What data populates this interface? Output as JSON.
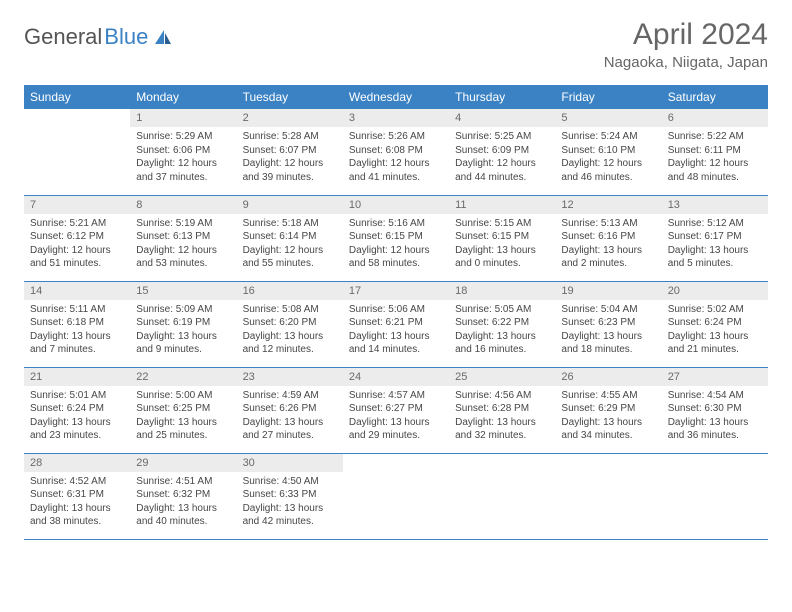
{
  "logo": {
    "text_gray": "General",
    "text_blue": "Blue"
  },
  "header": {
    "month_title": "April 2024",
    "location": "Nagaoka, Niigata, Japan"
  },
  "colors": {
    "header_bg": "#3b82c4",
    "header_text": "#ffffff",
    "daynum_bg": "#ececec",
    "daynum_text": "#6a6a6a",
    "body_text": "#474747",
    "divider": "#3b82c4",
    "title_text": "#666666"
  },
  "weekdays": [
    "Sunday",
    "Monday",
    "Tuesday",
    "Wednesday",
    "Thursday",
    "Friday",
    "Saturday"
  ],
  "weeks": [
    [
      {
        "n": "",
        "sr": "",
        "ss": "",
        "dl": ""
      },
      {
        "n": "1",
        "sr": "Sunrise: 5:29 AM",
        "ss": "Sunset: 6:06 PM",
        "dl": "Daylight: 12 hours and 37 minutes."
      },
      {
        "n": "2",
        "sr": "Sunrise: 5:28 AM",
        "ss": "Sunset: 6:07 PM",
        "dl": "Daylight: 12 hours and 39 minutes."
      },
      {
        "n": "3",
        "sr": "Sunrise: 5:26 AM",
        "ss": "Sunset: 6:08 PM",
        "dl": "Daylight: 12 hours and 41 minutes."
      },
      {
        "n": "4",
        "sr": "Sunrise: 5:25 AM",
        "ss": "Sunset: 6:09 PM",
        "dl": "Daylight: 12 hours and 44 minutes."
      },
      {
        "n": "5",
        "sr": "Sunrise: 5:24 AM",
        "ss": "Sunset: 6:10 PM",
        "dl": "Daylight: 12 hours and 46 minutes."
      },
      {
        "n": "6",
        "sr": "Sunrise: 5:22 AM",
        "ss": "Sunset: 6:11 PM",
        "dl": "Daylight: 12 hours and 48 minutes."
      }
    ],
    [
      {
        "n": "7",
        "sr": "Sunrise: 5:21 AM",
        "ss": "Sunset: 6:12 PM",
        "dl": "Daylight: 12 hours and 51 minutes."
      },
      {
        "n": "8",
        "sr": "Sunrise: 5:19 AM",
        "ss": "Sunset: 6:13 PM",
        "dl": "Daylight: 12 hours and 53 minutes."
      },
      {
        "n": "9",
        "sr": "Sunrise: 5:18 AM",
        "ss": "Sunset: 6:14 PM",
        "dl": "Daylight: 12 hours and 55 minutes."
      },
      {
        "n": "10",
        "sr": "Sunrise: 5:16 AM",
        "ss": "Sunset: 6:15 PM",
        "dl": "Daylight: 12 hours and 58 minutes."
      },
      {
        "n": "11",
        "sr": "Sunrise: 5:15 AM",
        "ss": "Sunset: 6:15 PM",
        "dl": "Daylight: 13 hours and 0 minutes."
      },
      {
        "n": "12",
        "sr": "Sunrise: 5:13 AM",
        "ss": "Sunset: 6:16 PM",
        "dl": "Daylight: 13 hours and 2 minutes."
      },
      {
        "n": "13",
        "sr": "Sunrise: 5:12 AM",
        "ss": "Sunset: 6:17 PM",
        "dl": "Daylight: 13 hours and 5 minutes."
      }
    ],
    [
      {
        "n": "14",
        "sr": "Sunrise: 5:11 AM",
        "ss": "Sunset: 6:18 PM",
        "dl": "Daylight: 13 hours and 7 minutes."
      },
      {
        "n": "15",
        "sr": "Sunrise: 5:09 AM",
        "ss": "Sunset: 6:19 PM",
        "dl": "Daylight: 13 hours and 9 minutes."
      },
      {
        "n": "16",
        "sr": "Sunrise: 5:08 AM",
        "ss": "Sunset: 6:20 PM",
        "dl": "Daylight: 13 hours and 12 minutes."
      },
      {
        "n": "17",
        "sr": "Sunrise: 5:06 AM",
        "ss": "Sunset: 6:21 PM",
        "dl": "Daylight: 13 hours and 14 minutes."
      },
      {
        "n": "18",
        "sr": "Sunrise: 5:05 AM",
        "ss": "Sunset: 6:22 PM",
        "dl": "Daylight: 13 hours and 16 minutes."
      },
      {
        "n": "19",
        "sr": "Sunrise: 5:04 AM",
        "ss": "Sunset: 6:23 PM",
        "dl": "Daylight: 13 hours and 18 minutes."
      },
      {
        "n": "20",
        "sr": "Sunrise: 5:02 AM",
        "ss": "Sunset: 6:24 PM",
        "dl": "Daylight: 13 hours and 21 minutes."
      }
    ],
    [
      {
        "n": "21",
        "sr": "Sunrise: 5:01 AM",
        "ss": "Sunset: 6:24 PM",
        "dl": "Daylight: 13 hours and 23 minutes."
      },
      {
        "n": "22",
        "sr": "Sunrise: 5:00 AM",
        "ss": "Sunset: 6:25 PM",
        "dl": "Daylight: 13 hours and 25 minutes."
      },
      {
        "n": "23",
        "sr": "Sunrise: 4:59 AM",
        "ss": "Sunset: 6:26 PM",
        "dl": "Daylight: 13 hours and 27 minutes."
      },
      {
        "n": "24",
        "sr": "Sunrise: 4:57 AM",
        "ss": "Sunset: 6:27 PM",
        "dl": "Daylight: 13 hours and 29 minutes."
      },
      {
        "n": "25",
        "sr": "Sunrise: 4:56 AM",
        "ss": "Sunset: 6:28 PM",
        "dl": "Daylight: 13 hours and 32 minutes."
      },
      {
        "n": "26",
        "sr": "Sunrise: 4:55 AM",
        "ss": "Sunset: 6:29 PM",
        "dl": "Daylight: 13 hours and 34 minutes."
      },
      {
        "n": "27",
        "sr": "Sunrise: 4:54 AM",
        "ss": "Sunset: 6:30 PM",
        "dl": "Daylight: 13 hours and 36 minutes."
      }
    ],
    [
      {
        "n": "28",
        "sr": "Sunrise: 4:52 AM",
        "ss": "Sunset: 6:31 PM",
        "dl": "Daylight: 13 hours and 38 minutes."
      },
      {
        "n": "29",
        "sr": "Sunrise: 4:51 AM",
        "ss": "Sunset: 6:32 PM",
        "dl": "Daylight: 13 hours and 40 minutes."
      },
      {
        "n": "30",
        "sr": "Sunrise: 4:50 AM",
        "ss": "Sunset: 6:33 PM",
        "dl": "Daylight: 13 hours and 42 minutes."
      },
      {
        "n": "",
        "sr": "",
        "ss": "",
        "dl": ""
      },
      {
        "n": "",
        "sr": "",
        "ss": "",
        "dl": ""
      },
      {
        "n": "",
        "sr": "",
        "ss": "",
        "dl": ""
      },
      {
        "n": "",
        "sr": "",
        "ss": "",
        "dl": ""
      }
    ]
  ]
}
